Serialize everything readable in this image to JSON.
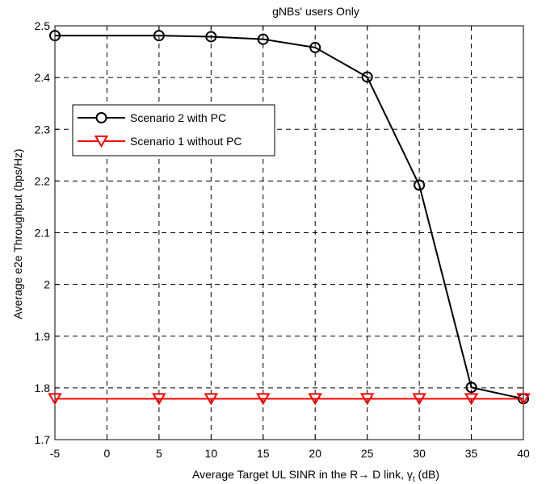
{
  "chart_data": {
    "type": "line",
    "title": "gNBs' users Only",
    "xlabel": {
      "main": "Average Target UL SINR in the R",
      "arrow": "→",
      "rest": " D link, ",
      "gamma": "γ",
      "sub": "t",
      "unit": " (dB)"
    },
    "ylabel": "Average e2e Throughput (bps/Hz)",
    "xlim": [
      -5,
      40
    ],
    "ylim": [
      1.7,
      2.5
    ],
    "xticks": [
      -5,
      0,
      5,
      10,
      15,
      20,
      25,
      30,
      35,
      40
    ],
    "xtick_labels": [
      "-5",
      "0",
      "5",
      "10",
      "15",
      "20",
      "25",
      "30",
      "35",
      "40"
    ],
    "yticks": [
      1.7,
      1.8,
      1.9,
      2.0,
      2.1,
      2.2,
      2.3,
      2.4,
      2.5
    ],
    "ytick_labels": [
      "1.7",
      "1.8",
      "1.9",
      "2",
      "2.1",
      "2.2",
      "2.3",
      "2.4",
      "2.5"
    ],
    "grid": true,
    "legend_position": "upper-left",
    "series": [
      {
        "name": "Scenario 2 with PC",
        "color": "#000000",
        "marker": "circle",
        "x": [
          -5,
          5,
          10,
          15,
          20,
          25,
          30,
          35,
          40
        ],
        "y": [
          2.481,
          2.481,
          2.479,
          2.474,
          2.458,
          2.401,
          2.192,
          1.801,
          1.779
        ]
      },
      {
        "name": "Scenario 1 without PC",
        "color": "#ff0000",
        "marker": "triangle-down",
        "x": [
          -5,
          5,
          10,
          15,
          20,
          25,
          30,
          35,
          40
        ],
        "y": [
          1.779,
          1.779,
          1.779,
          1.779,
          1.779,
          1.779,
          1.779,
          1.779,
          1.779
        ]
      }
    ]
  }
}
